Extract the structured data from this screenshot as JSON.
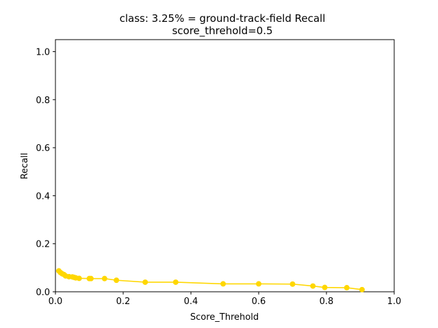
{
  "chart_data": {
    "type": "line",
    "title": "class: 3.25% = ground-track-field Recall",
    "subtitle": "score_threhold=0.5",
    "xlabel": "Score_Threhold",
    "ylabel": "Recall",
    "xlim": [
      0.0,
      1.0
    ],
    "ylim": [
      0.0,
      1.05
    ],
    "x_ticks": [
      "0.0",
      "0.2",
      "0.4",
      "0.6",
      "0.8",
      "1.0"
    ],
    "y_ticks": [
      "0.0",
      "0.2",
      "0.4",
      "0.6",
      "0.8",
      "1.0"
    ],
    "grid": false,
    "series": [
      {
        "color": "#ffd700",
        "marker": "circle",
        "x": [
          0.01,
          0.015,
          0.02,
          0.025,
          0.03,
          0.04,
          0.05,
          0.055,
          0.06,
          0.07,
          0.1,
          0.105,
          0.145,
          0.18,
          0.265,
          0.355,
          0.495,
          0.6,
          0.7,
          0.76,
          0.795,
          0.86,
          0.905
        ],
        "y": [
          0.087,
          0.08,
          0.075,
          0.072,
          0.066,
          0.063,
          0.062,
          0.06,
          0.058,
          0.056,
          0.055,
          0.055,
          0.055,
          0.048,
          0.04,
          0.04,
          0.033,
          0.033,
          0.032,
          0.024,
          0.018,
          0.017,
          0.009
        ]
      }
    ]
  }
}
